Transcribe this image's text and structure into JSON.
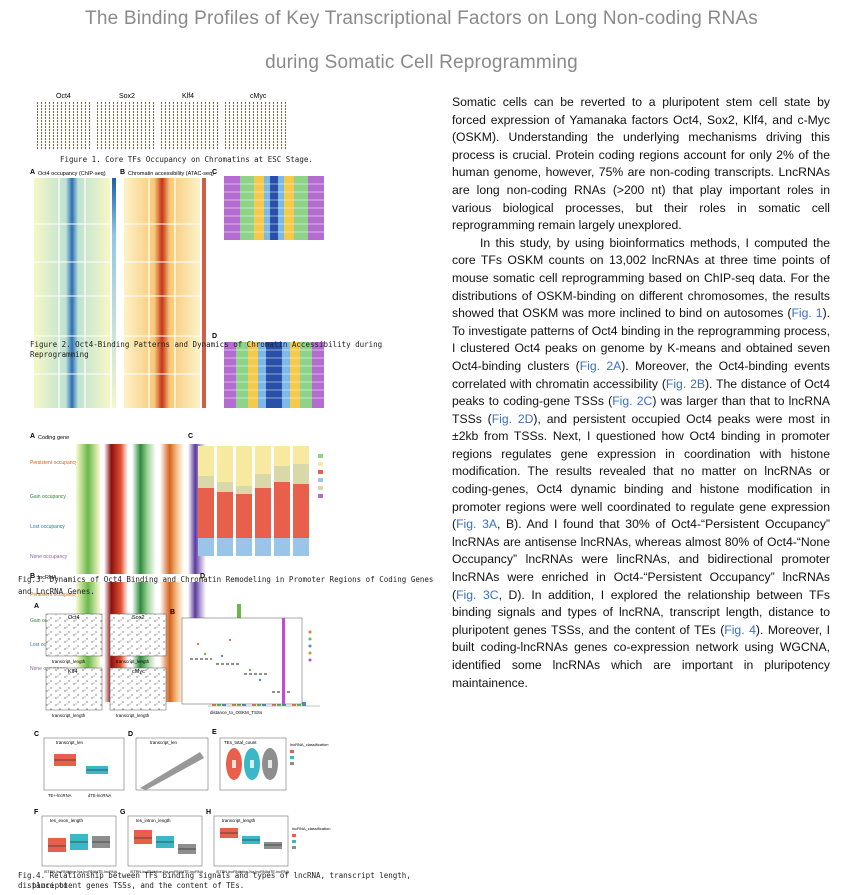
{
  "title": {
    "line1": "The Binding Profiles of Key Transcriptional Factors on Long Non-coding RNAs",
    "line2": "during Somatic Cell Reprogramming"
  },
  "fig1": {
    "panels": [
      "Oct4",
      "Sox2",
      "Klf4",
      "cMyc"
    ],
    "caption": "Figure 1. Core TFs Occupancy on Chromatins at ESC Stage."
  },
  "fig2": {
    "labels": {
      "a": "A",
      "b": "B",
      "c": "C",
      "d": "D"
    },
    "a_title": "Oct4 occupancy (ChIP-seq)",
    "b_title": "Chromatin accessibility (ATAC-seq)",
    "caption": "Figure 2. Oct4-Binding Patterns and Dynamics of Chromatin Accessibility during Reprogramming"
  },
  "fig3": {
    "labels": {
      "a": "A",
      "b": "B",
      "c": "C",
      "d": "D"
    },
    "a_title": "Coding gene",
    "b_title": "lncRNA",
    "a_groups": [
      "Persistent occupancy",
      "Gain occupancy",
      "Lost occupancy",
      "None occupancy"
    ],
    "b_groups": [
      "Persistent occupancy (1097)",
      "Gain occupancy (1062)",
      "Lost occupancy (1040)",
      "None occupancy"
    ],
    "caption_line1": "Fig.3. Dynamics of Oct4 Binding and Chromatin Remodeling in Promoter Regions of Coding Genes",
    "caption_line2": "and LncRNA Genes."
  },
  "fig4": {
    "labels": {
      "a": "A",
      "b": "B",
      "c": "C",
      "d": "D",
      "e": "E",
      "f": "F",
      "g": "G",
      "h": "H"
    },
    "a_panels": [
      "Oct4",
      "Sox2",
      "Klf4",
      "cMyc"
    ],
    "a_xlabel": "transcript_length",
    "b_xlabel": "distance_to_OSKM_TSSs",
    "c_title": "transcript_len",
    "d_title": "transcript_len",
    "e_title": "TEs_total_count",
    "f_title": "tes_exon_length",
    "g_title": "tes_intron_length",
    "h_title": "transcript_length",
    "c_xlabels": [
      "TE+-lncRNA",
      "dTE-lncRNA"
    ],
    "fgh_xlabels": [
      "lSTRN-lncRNA",
      "ntive-Na-lncRNA",
      "dTE-lncRNA"
    ],
    "legend_title": "lncRNA_classification",
    "caption_line1": "Fig.4. Relationship between TFs binding signals and types of lncRNA, transcript length, distance to",
    "caption_line2": "pluripotent genes TSSs, and the content of TEs."
  },
  "text": {
    "p1": "Somatic cells can be reverted to a pluripotent stem cell state by forced expression of Yamanaka factors Oct4, Sox2, Klf4, and c-Myc (OSKM). Understanding the underlying mechanisms driving this process is crucial. Protein coding regions account for only 2% of the human genome, however, 75% are non-coding transcripts. LncRNAs are long non-coding RNAs (>200 nt) that play important roles in various biological processes, but their roles in somatic cell reprogramming remain largely unexplored.",
    "p2_a": "In this study, by using bioinformatics methods, I computed the core TFs OSKM counts on 13,002 lncRNAs at three time points of mouse somatic cell reprogramming based on ChIP-seq data. For the distributions of OSKM-binding on different chromosomes, the results showed that OSKM was more inclined to bind on autosomes (",
    "ref1": "Fig. 1",
    "p2_b": "). To investigate patterns of Oct4 binding in the reprogramming process, I clustered Oct4 peaks on genome by K-means and obtained seven Oct4-binding clusters (",
    "ref2": "Fig. 2A",
    "p2_c": "). Moreover, the Oct4-binding events correlated with chromatin accessibility (",
    "ref3": "Fig. 2B",
    "p2_d": "). The distance of Oct4 peaks to coding-gene TSSs (",
    "ref4": "Fig. 2C",
    "p2_e": ") was larger than that to lncRNA TSSs (",
    "ref5": "Fig. 2D",
    "p2_f": "), and persistent occupied Oct4 peaks were most in ±2kb from TSSs. Next, I questioned how Oct4 binding in promoter regions regulates gene expression in coordination with histone modification. The results revealed that no matter on lncRNAs or coding-genes, Oct4 dynamic binding and histone modification in promoter regions were well coordinated to regulate gene expression (",
    "ref6": "Fig. 3A",
    "p2_g": ", B). And I found that 30% of Oct4-“Persistent Occupancy” lncRNAs are antisense lncRNAs, whereas almost 80% of Oct4-“None Occupancy” lncRNAs were lincRNAs, and bidirectional promoter lncRNAs were enriched in Oct4-“Persistent Occupancy” lncRNAs (",
    "ref7": "Fig. 3C",
    "p2_h": ", D). In addition, I explored the relationship between TFs binding signals and types of lncRNA, transcript length, distance to pluripotent genes TSSs, and the content of TEs (",
    "ref8": "Fig. 4",
    "p2_i": "). Moreover, I built coding-lncRNAs genes co-expression network using WGCNA, identified some lncRNAs which are important in pluripotency maintainence."
  }
}
